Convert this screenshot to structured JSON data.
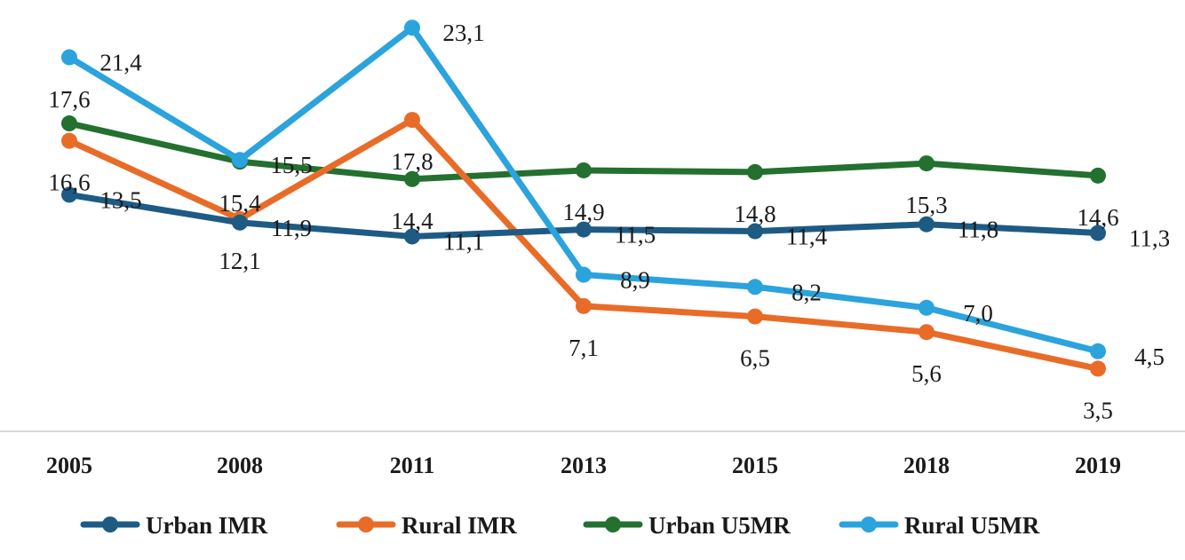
{
  "chart_data": {
    "type": "line",
    "categories": [
      "2005",
      "2008",
      "2011",
      "2013",
      "2015",
      "2018",
      "2019"
    ],
    "series": [
      {
        "name": "Urban IMR",
        "color": "#1d5b85",
        "values": [
          13.5,
          11.9,
          11.1,
          11.5,
          11.4,
          11.8,
          11.3
        ],
        "labels": [
          "13,5",
          "11,9",
          "11,1",
          "11,5",
          "11,4",
          "11,8",
          "11,3"
        ]
      },
      {
        "name": "Rural IMR",
        "color": "#e86c28",
        "values": [
          16.6,
          12.1,
          17.8,
          7.1,
          6.5,
          5.6,
          3.5
        ],
        "labels": [
          "16,6",
          "12,1",
          "17,8",
          "7,1",
          "6,5",
          "5,6",
          "3,5"
        ]
      },
      {
        "name": "Urban U5MR",
        "color": "#23702f",
        "values": [
          17.6,
          15.4,
          14.4,
          14.9,
          14.8,
          15.3,
          14.6
        ],
        "labels": [
          "17,6",
          "15,4",
          "14,4",
          "14,9",
          "14,8",
          "15,3",
          "14,6"
        ]
      },
      {
        "name": "Rural U5MR",
        "color": "#2ba3dc",
        "values": [
          21.4,
          15.5,
          23.1,
          8.9,
          8.2,
          7.0,
          4.5
        ],
        "labels": [
          "21,4",
          "15,5",
          "23,1",
          "8,9",
          "8,2",
          "7,0",
          "4,5"
        ]
      }
    ],
    "title": "",
    "xlabel": "",
    "ylabel": "",
    "ylim": [
      0,
      24.7
    ],
    "grid": false,
    "legend": "bottom"
  }
}
